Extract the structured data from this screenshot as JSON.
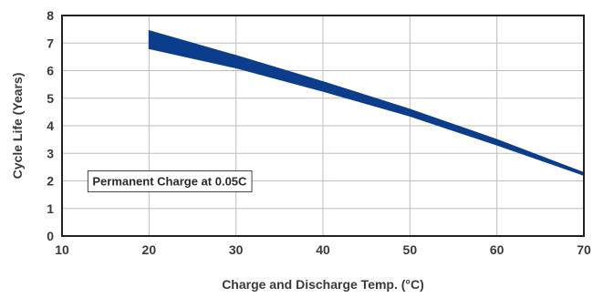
{
  "chart_data": {
    "type": "area",
    "title": "",
    "xlabel": "Charge and Discharge Temp. (°C)",
    "ylabel": "Cycle Life (Years)",
    "xlim": [
      10,
      70
    ],
    "ylim": [
      0,
      8
    ],
    "xticks": [
      10,
      20,
      30,
      40,
      50,
      60,
      70
    ],
    "yticks": [
      0,
      1,
      2,
      3,
      4,
      5,
      6,
      7,
      8
    ],
    "grid": true,
    "series": [
      {
        "x": [
          20,
          30,
          40,
          50,
          60,
          70
        ],
        "upper": [
          7.45,
          6.55,
          5.6,
          4.6,
          3.5,
          2.3
        ],
        "lower": [
          6.8,
          6.1,
          5.25,
          4.35,
          3.3,
          2.2
        ]
      }
    ],
    "band_color": "#0b3d8c",
    "annotations": [
      {
        "text": "Permanent Charge at 0.05C",
        "x": 13.5,
        "y": 2
      }
    ]
  }
}
